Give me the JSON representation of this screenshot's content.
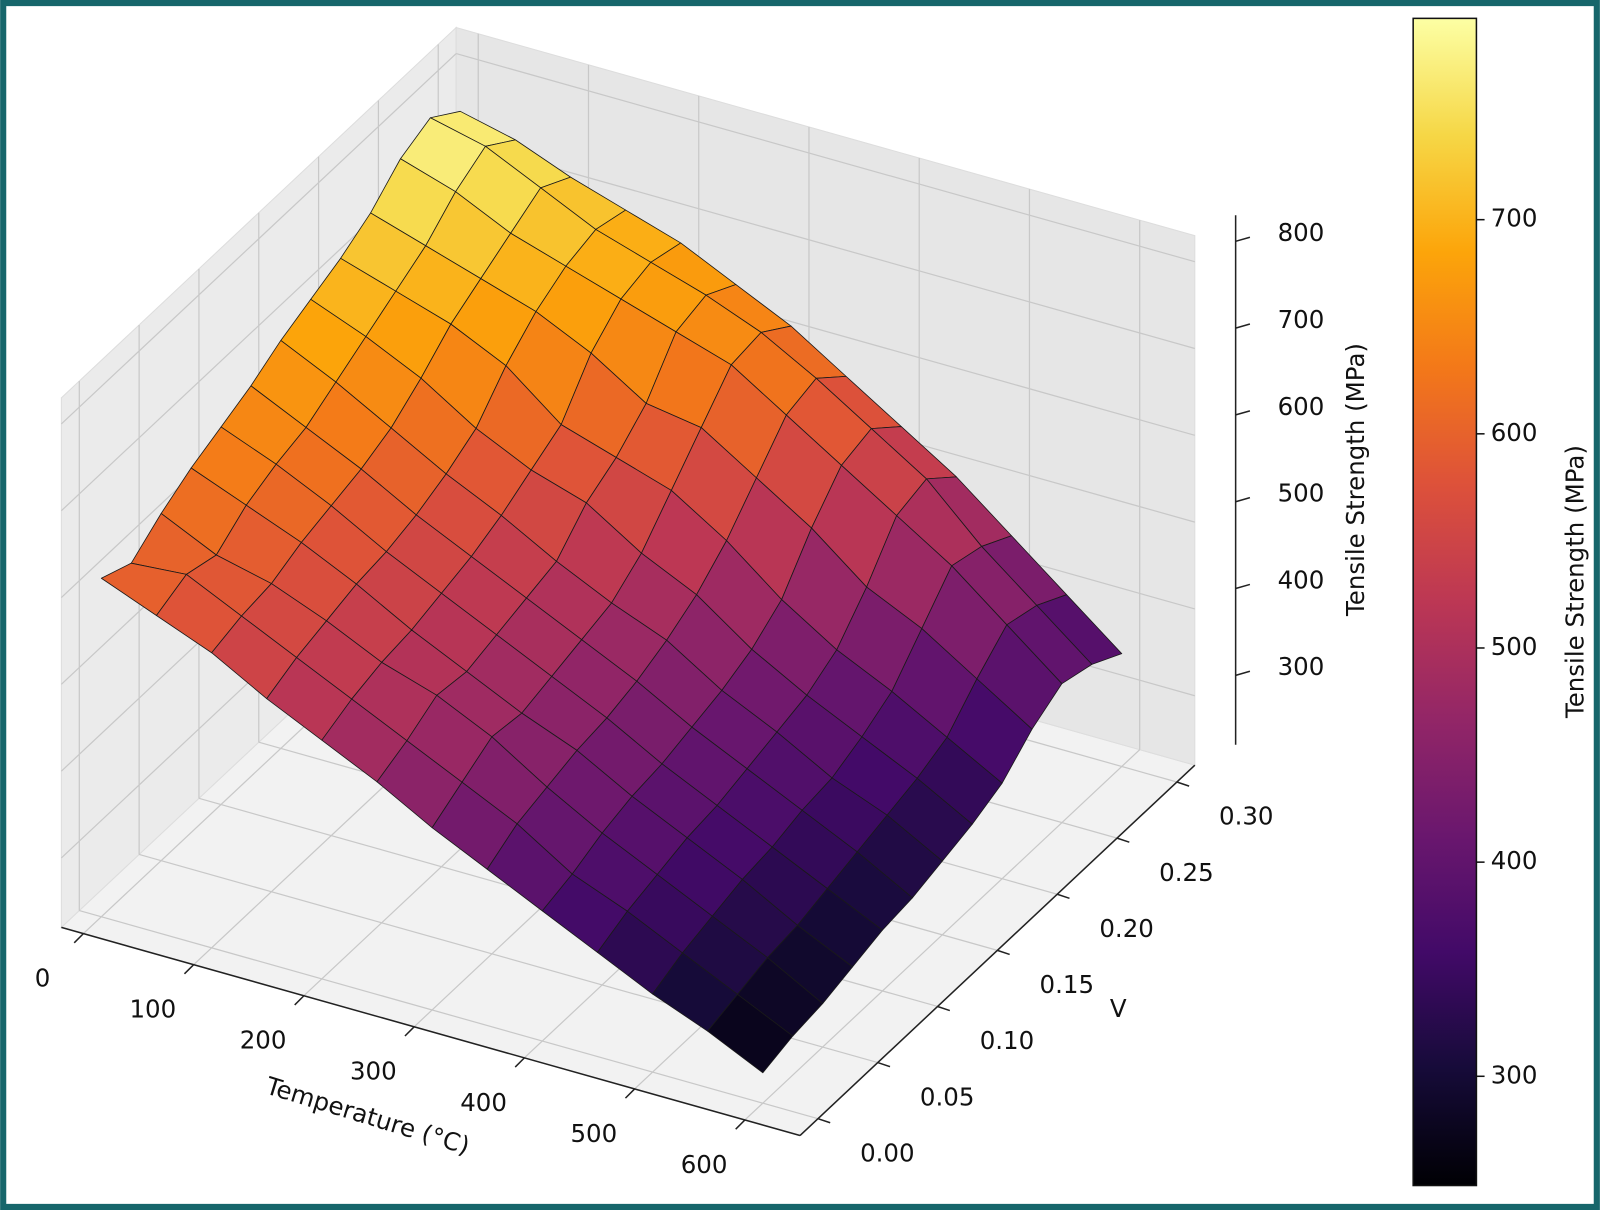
{
  "chart_data": {
    "type": "surface",
    "colormap": "inferno",
    "x_label": "Temperature (°C)",
    "y_label": "V",
    "z_label": "Tensile Strength (MPa)",
    "colorbar_label": "Tensile Strength (MPa)",
    "x": [
      0,
      50,
      100,
      150,
      200,
      250,
      300,
      350,
      400,
      450,
      500,
      550,
      600
    ],
    "y": [
      0,
      0.025,
      0.05,
      0.075,
      0.1,
      0.125,
      0.15,
      0.175,
      0.2,
      0.225,
      0.25,
      0.275,
      0.3
    ],
    "z": [
      [
        610,
        595,
        620,
        640,
        655,
        670,
        690,
        705,
        720,
        740,
        770,
        785,
        760
      ],
      [
        585,
        600,
        590,
        615,
        630,
        640,
        660,
        680,
        700,
        720,
        750,
        770,
        745
      ],
      [
        560,
        570,
        575,
        590,
        600,
        610,
        625,
        650,
        680,
        700,
        720,
        740,
        720
      ],
      [
        525,
        540,
        550,
        560,
        565,
        575,
        590,
        610,
        650,
        680,
        700,
        710,
        700
      ],
      [
        495,
        510,
        520,
        525,
        535,
        545,
        560,
        580,
        600,
        650,
        680,
        690,
        680
      ],
      [
        465,
        480,
        500,
        495,
        505,
        515,
        525,
        560,
        580,
        610,
        660,
        670,
        650
      ],
      [
        430,
        450,
        470,
        465,
        475,
        485,
        495,
        520,
        560,
        600,
        640,
        645,
        620
      ],
      [
        400,
        420,
        430,
        440,
        445,
        455,
        470,
        490,
        520,
        560,
        600,
        610,
        580
      ],
      [
        370,
        380,
        395,
        405,
        410,
        420,
        430,
        445,
        470,
        520,
        560,
        570,
        540
      ],
      [
        340,
        355,
        365,
        375,
        380,
        390,
        400,
        410,
        430,
        470,
        520,
        530,
        500
      ],
      [
        310,
        325,
        335,
        345,
        350,
        360,
        365,
        380,
        400,
        440,
        480,
        470,
        450
      ],
      [
        285,
        295,
        305,
        310,
        320,
        330,
        340,
        350,
        365,
        400,
        430,
        420,
        400
      ],
      [
        255,
        265,
        270,
        280,
        290,
        295,
        305,
        315,
        330,
        360,
        380,
        370,
        350
      ]
    ],
    "xlim": [
      -20,
      650
    ],
    "ylim": [
      -0.015,
      0.315
    ],
    "zlim": [
      220,
      830
    ],
    "xticks": [
      0,
      100,
      200,
      300,
      400,
      500,
      600
    ],
    "yticks": [
      {
        "value": 0,
        "label": "0.00"
      },
      0.05,
      {
        "value": 0.1,
        "label": "0.10"
      },
      0.15,
      {
        "value": 0.2,
        "label": "0.20"
      },
      0.25,
      {
        "value": 0.3,
        "label": "0.30"
      }
    ],
    "zticks": [
      300,
      400,
      500,
      600,
      700,
      800
    ],
    "clim": [
      249,
      794
    ],
    "cticks": [
      300,
      400,
      500,
      600,
      700
    ],
    "grid": true
  }
}
